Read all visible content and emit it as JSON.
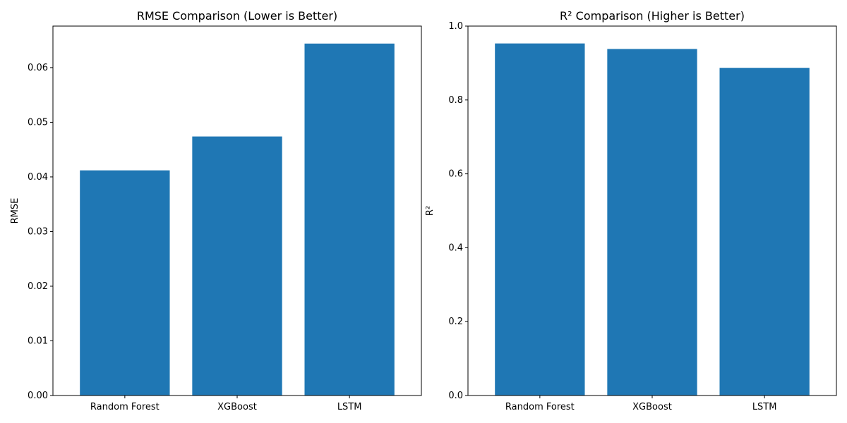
{
  "colors": {
    "bar": "#1f77b4",
    "axis": "#000000",
    "background": "#ffffff"
  },
  "chart_data": [
    {
      "type": "bar",
      "title": "RMSE Comparison (Lower is Better)",
      "xlabel": "",
      "ylabel": "RMSE",
      "categories": [
        "Random Forest",
        "XGBoost",
        "LSTM"
      ],
      "values": [
        0.0412,
        0.0474,
        0.0644
      ],
      "ylim": [
        0,
        0.0676
      ],
      "yticks": [
        0.0,
        0.01,
        0.02,
        0.03,
        0.04,
        0.05,
        0.06
      ],
      "ytick_labels": [
        "0.00",
        "0.01",
        "0.02",
        "0.03",
        "0.04",
        "0.05",
        "0.06"
      ],
      "grid": false,
      "legend": "none"
    },
    {
      "type": "bar",
      "title": "R² Comparison (Higher is Better)",
      "xlabel": "",
      "ylabel": "R²",
      "categories": [
        "Random Forest",
        "XGBoost",
        "LSTM"
      ],
      "values": [
        0.953,
        0.938,
        0.887
      ],
      "ylim": [
        0,
        1.0
      ],
      "yticks": [
        0.0,
        0.2,
        0.4,
        0.6,
        0.8,
        1.0
      ],
      "ytick_labels": [
        "0.0",
        "0.2",
        "0.4",
        "0.6",
        "0.8",
        "1.0"
      ],
      "grid": false,
      "legend": "none"
    }
  ]
}
